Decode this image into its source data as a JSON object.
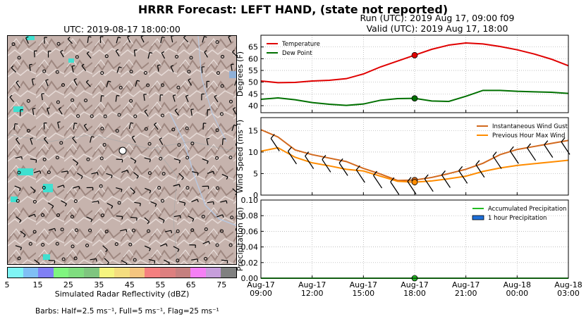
{
  "header": {
    "title": "HRRR Forecast: LEFT HAND, (state not reported)",
    "run_line": "Run (UTC): 2019 Aug 17, 09:00 f09",
    "valid_line": "Valid (UTC): 2019 Aug 17, 18:00"
  },
  "map": {
    "title": "UTC: 2019-08-17 18:00:00",
    "colorbar_label": "Simulated Radar Reflectivity (dBZ)",
    "colorbar_ticks": [
      "5",
      "15",
      "25",
      "35",
      "45",
      "55",
      "65",
      "75"
    ],
    "colorbar_colors": [
      "#7ff5f5",
      "#7fbff5",
      "#8080f5",
      "#7ff57f",
      "#7fdd7f",
      "#7fc57f",
      "#f5f57f",
      "#f5dd7f",
      "#f5c57f",
      "#f57f7f",
      "#dd7f7f",
      "#c57f7f",
      "#f57ff5",
      "#c69edb",
      "#808080"
    ],
    "barb_note": "Barbs: Half=2.5 ms⁻¹, Full=5 ms⁻¹, Flag=25 ms⁻¹"
  },
  "chart_data": [
    {
      "type": "line",
      "x": [
        "Aug-17 09:00",
        "10:00",
        "11:00",
        "12:00",
        "13:00",
        "14:00",
        "15:00",
        "16:00",
        "17:00",
        "18:00",
        "19:00",
        "20:00",
        "21:00",
        "22:00",
        "23:00",
        "Aug-18 00:00",
        "01:00",
        "02:00",
        "03:00"
      ],
      "series": [
        {
          "name": "Temperature",
          "color": "#e00000",
          "values": [
            50.5,
            49.8,
            49.9,
            50.5,
            50.8,
            51.5,
            53.5,
            56.5,
            59.0,
            61.5,
            64.0,
            65.8,
            66.7,
            66.3,
            65.2,
            63.8,
            62.0,
            59.8,
            57.0
          ]
        },
        {
          "name": "Dew Point",
          "color": "#007000",
          "values": [
            42.7,
            43.3,
            42.5,
            41.3,
            40.6,
            40.1,
            40.7,
            42.3,
            43.0,
            43.1,
            42.0,
            41.8,
            44.0,
            46.5,
            46.5,
            46.1,
            45.9,
            45.7,
            45.2
          ]
        }
      ],
      "ylabel": "Degrees (F)",
      "ylim": [
        37,
        70
      ],
      "yticks": [
        "40",
        "45",
        "50",
        "55",
        "60",
        "65"
      ],
      "legend": "top-left",
      "grid": true,
      "marker_time": "18:00"
    },
    {
      "type": "line",
      "x": [
        "Aug-17 09:00",
        "10:00",
        "11:00",
        "12:00",
        "13:00",
        "14:00",
        "15:00",
        "16:00",
        "17:00",
        "18:00",
        "19:00",
        "20:00",
        "21:00",
        "22:00",
        "23:00",
        "Aug-18 00:00",
        "01:00",
        "02:00",
        "03:00"
      ],
      "series": [
        {
          "name": "Instantaneous Wind Gust",
          "color": "#d2691e",
          "values": [
            15.2,
            13.5,
            10.5,
            9.4,
            8.6,
            7.8,
            6.2,
            4.9,
            3.4,
            3.5,
            4.1,
            5.0,
            6.0,
            7.4,
            9.4,
            10.6,
            11.3,
            12.0,
            12.7
          ]
        },
        {
          "name": "Previous Hour Max Wind",
          "color": "#ff8c00",
          "values": [
            10.2,
            11.0,
            8.8,
            7.5,
            6.8,
            6.0,
            5.6,
            4.4,
            3.2,
            3.0,
            3.3,
            3.8,
            4.4,
            5.5,
            6.3,
            6.9,
            7.3,
            7.7,
            8.1
          ]
        }
      ],
      "ylabel": "Wind Speed (ms⁻¹)",
      "ylim": [
        0,
        18
      ],
      "yticks": [
        "0",
        "5",
        "10",
        "15"
      ],
      "legend": "top-right",
      "grid": true,
      "marker_time": "18:00"
    },
    {
      "type": "line",
      "x": [
        "Aug-17 09:00",
        "10:00",
        "11:00",
        "12:00",
        "13:00",
        "14:00",
        "15:00",
        "16:00",
        "17:00",
        "18:00",
        "19:00",
        "20:00",
        "21:00",
        "22:00",
        "23:00",
        "Aug-18 00:00",
        "01:00",
        "02:00",
        "03:00"
      ],
      "series": [
        {
          "name": "Accumulated Precipitation",
          "color": "#22bb22",
          "values": [
            0,
            0,
            0,
            0,
            0,
            0,
            0,
            0,
            0,
            0,
            0,
            0,
            0,
            0,
            0,
            0,
            0,
            0,
            0
          ]
        },
        {
          "name": "1 hour Precipitation",
          "color": "#1e6fd9",
          "values": [
            0,
            0,
            0,
            0,
            0,
            0,
            0,
            0,
            0,
            0,
            0,
            0,
            0,
            0,
            0,
            0,
            0,
            0,
            0
          ]
        }
      ],
      "ylabel": "Precipitation (in)",
      "ylim": [
        0,
        0.1
      ],
      "yticks": [
        "0.00",
        "0.02",
        "0.04",
        "0.06",
        "0.08",
        "0.10"
      ],
      "xticks": [
        [
          "Aug-17",
          "09:00"
        ],
        [
          "Aug-17",
          "12:00"
        ],
        [
          "Aug-17",
          "15:00"
        ],
        [
          "Aug-17",
          "18:00"
        ],
        [
          "Aug-17",
          "21:00"
        ],
        [
          "Aug-18",
          "00:00"
        ],
        [
          "Aug-18",
          "03:00"
        ]
      ],
      "legend": "top-right",
      "grid": true,
      "marker_time": "18:00"
    }
  ]
}
